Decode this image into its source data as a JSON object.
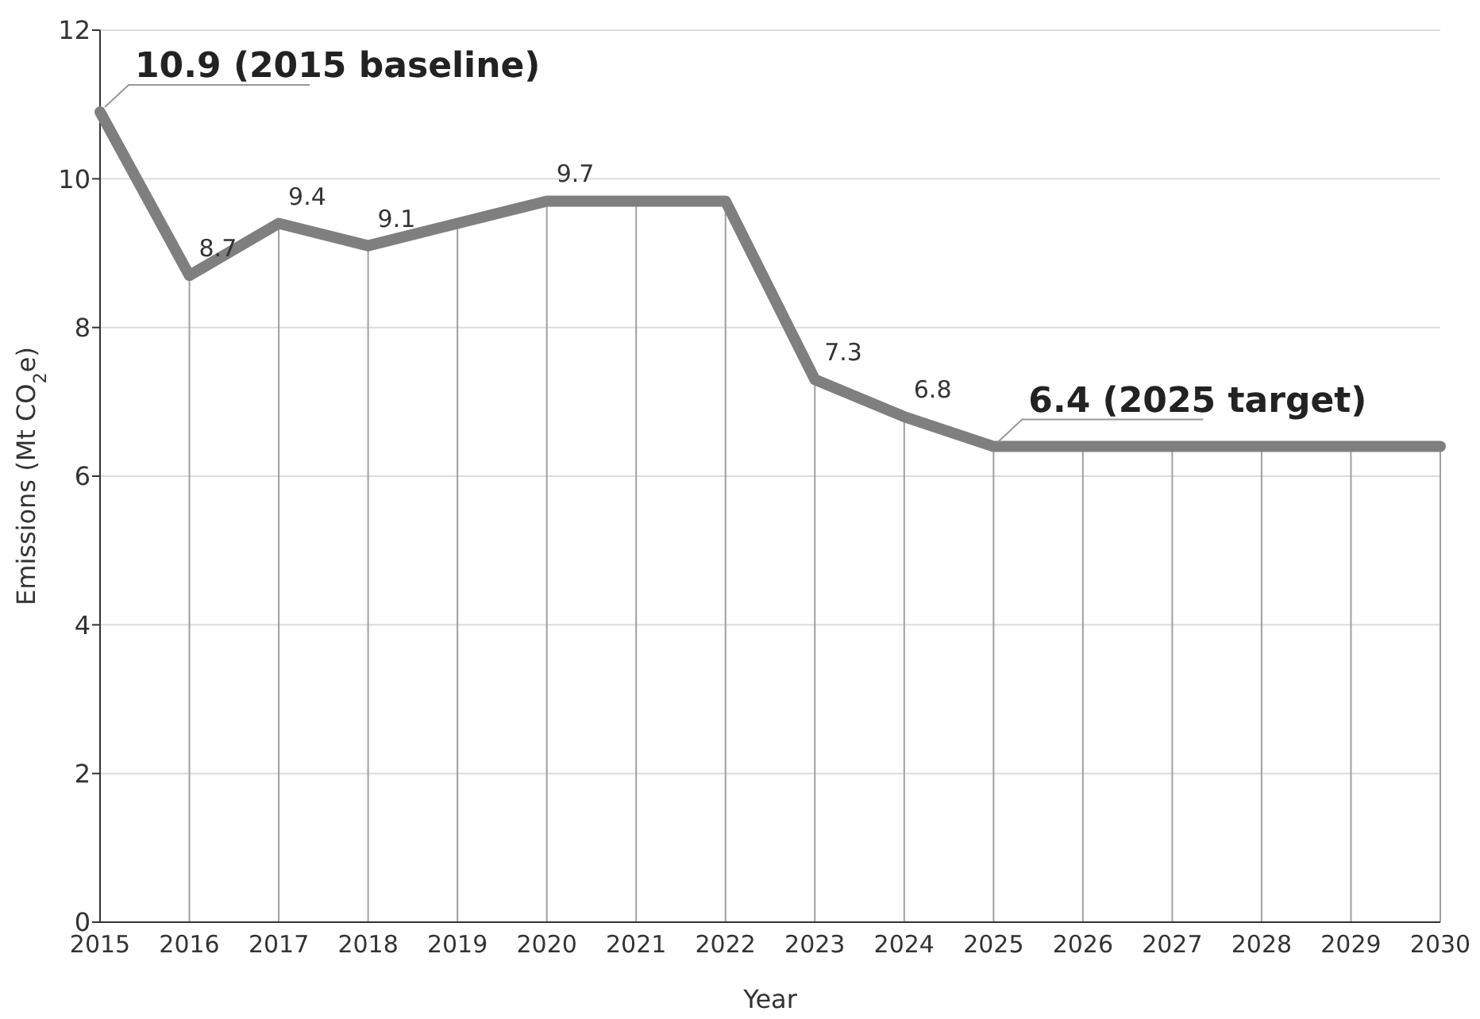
{
  "chart_data": {
    "type": "line",
    "xlabel": "Year",
    "ylabel": "Emissions (Mt CO$_{2}$e)",
    "x": [
      2015,
      2016,
      2017,
      2018,
      2019,
      2020,
      2021,
      2022,
      2023,
      2024,
      2025,
      2026,
      2027,
      2028,
      2029,
      2030
    ],
    "series": [
      {
        "color": "#7f7f7f",
        "values": [
          10.9,
          8.7,
          9.4,
          9.1,
          9.4,
          9.7,
          9.7,
          9.7,
          7.3,
          6.8,
          6.4,
          6.4,
          6.4,
          6.4,
          6.4,
          6.4
        ],
        "value_labels": [
          null,
          "8.7",
          "9.4",
          "9.1",
          null,
          "9.7",
          null,
          null,
          "7.3",
          "6.8",
          null,
          null,
          null,
          null,
          null,
          null
        ]
      }
    ],
    "xlim": [
      2015,
      2030
    ],
    "xticks": [
      2015,
      2016,
      2017,
      2018,
      2019,
      2020,
      2021,
      2022,
      2023,
      2024,
      2025,
      2026,
      2027,
      2028,
      2029,
      2030
    ],
    "ylim": [
      0,
      12
    ],
    "yticks": [
      0,
      2,
      4,
      6,
      8,
      10,
      12
    ],
    "grid": true,
    "marker": "none",
    "line_style": "solid",
    "annotations": [
      {
        "text": "10.9 (2015 baseline)",
        "x": 2015,
        "y": 10.9
      },
      {
        "text": "6.4 (2025 target)",
        "x": 2025,
        "y": 6.4
      }
    ]
  }
}
